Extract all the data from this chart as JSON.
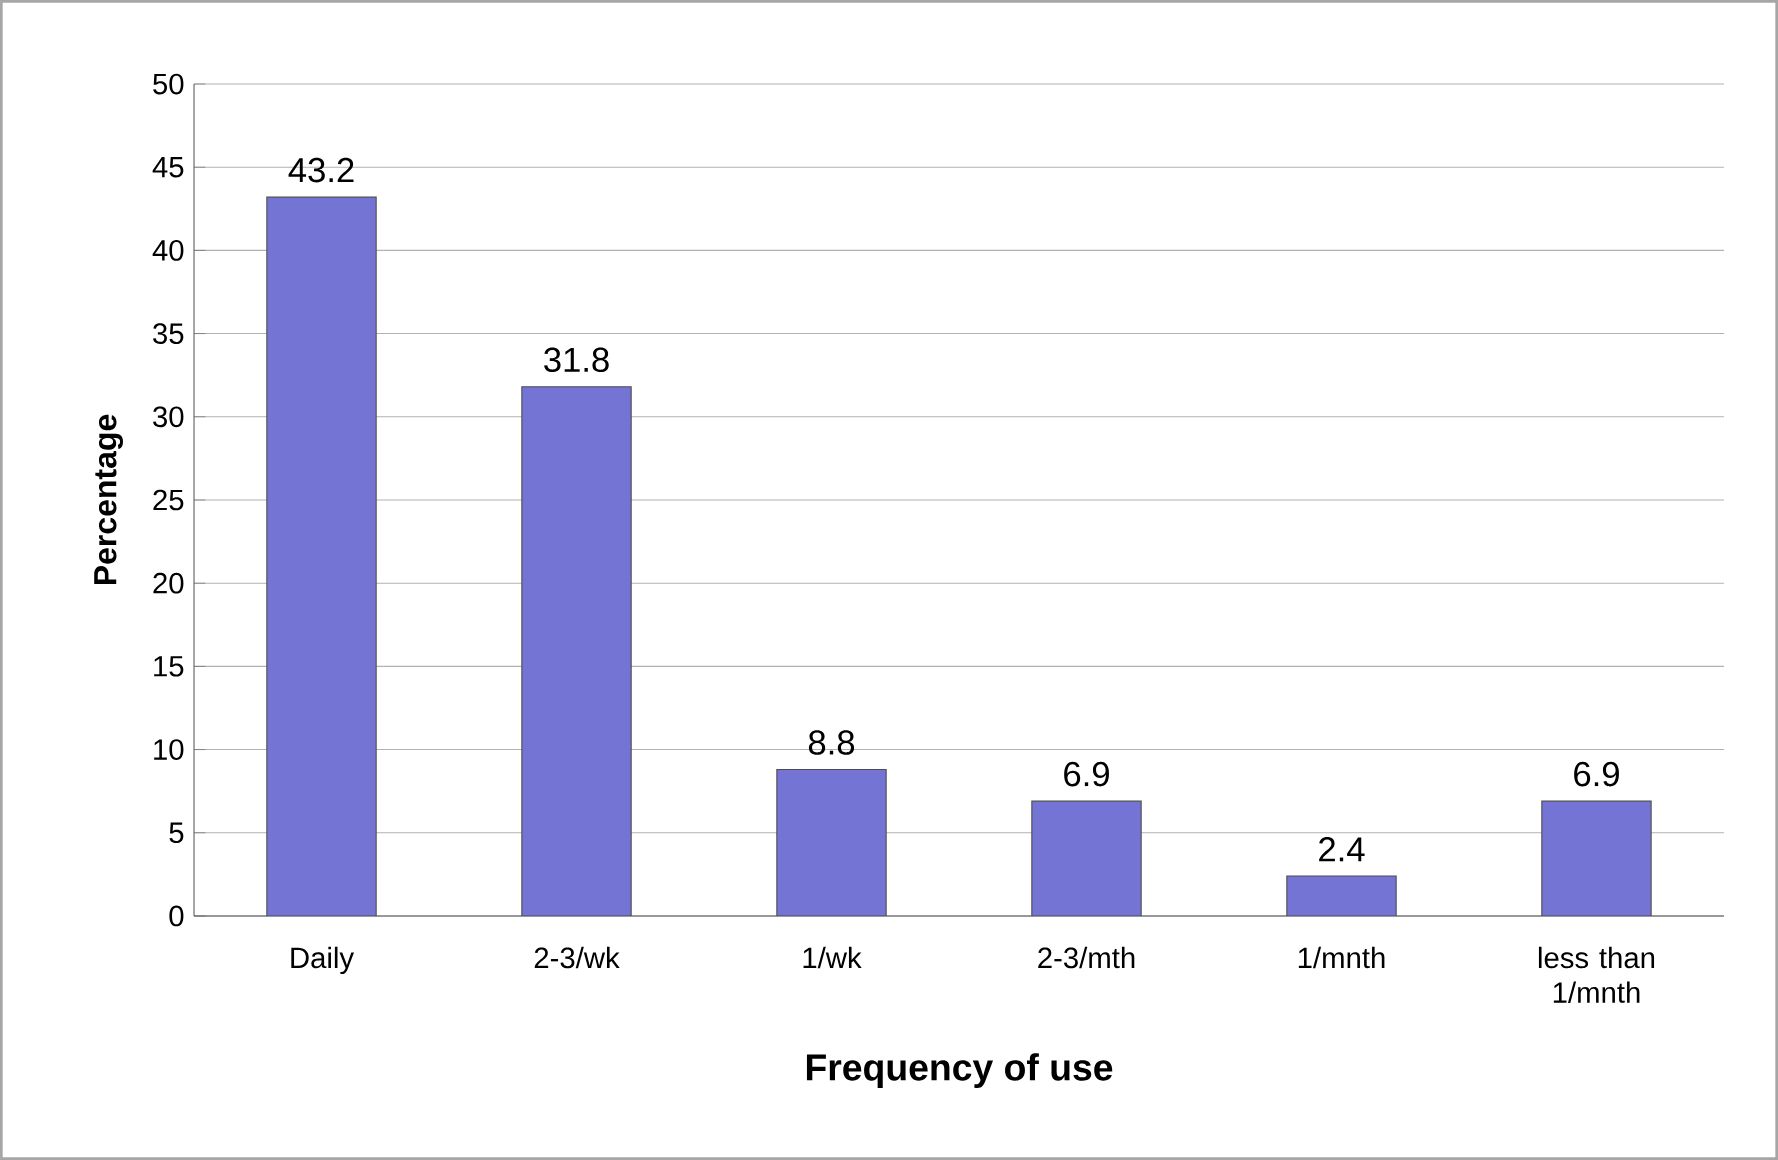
{
  "chart_data": {
    "type": "bar",
    "xlabel": "Frequency of use",
    "ylabel": "Percentage",
    "categories": [
      "Daily",
      "2-3/wk",
      "1/wk",
      "2-3/mth",
      "1/mnth",
      "less than 1/mnth"
    ],
    "values": [
      43.2,
      31.8,
      8.8,
      6.9,
      2.4,
      6.9
    ],
    "color": "#7474d4",
    "ylim": [
      0,
      50
    ],
    "yticks": [
      0,
      5,
      10,
      15,
      20,
      25,
      30,
      35,
      40,
      45,
      50
    ],
    "grid": "y",
    "data_labels": true
  }
}
